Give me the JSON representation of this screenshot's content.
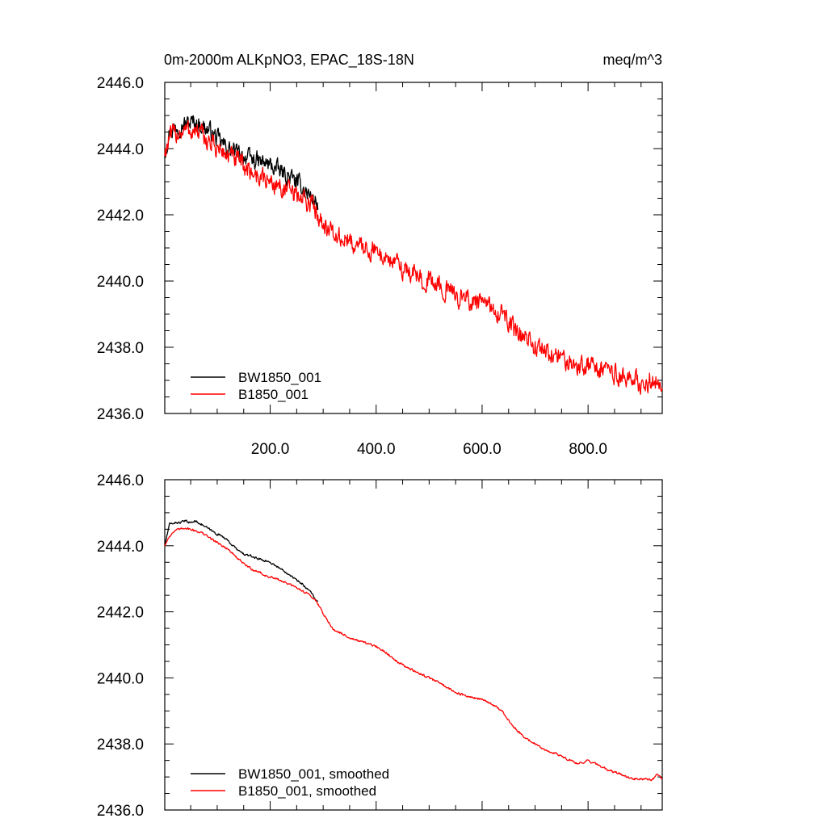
{
  "header": {
    "title": "0m-2000m ALKpNO3, EPAC_18S-18N",
    "units": "meq/m^3"
  },
  "colors": {
    "series_black": "#000000",
    "series_red": "#ff0000"
  },
  "chart_data": [
    {
      "type": "line",
      "title": "0m-2000m ALKpNO3, EPAC_18S-18N",
      "units_label": "meq/m^3",
      "xlabel": "",
      "ylabel": "",
      "xlim": [
        1,
        940
      ],
      "ylim": [
        2436,
        2446
      ],
      "x_ticks": [
        200,
        400,
        600,
        800
      ],
      "x_tick_labels": [
        "200.0",
        "400.0",
        "600.0",
        "800.0"
      ],
      "y_ticks": [
        2436,
        2438,
        2440,
        2442,
        2444,
        2446
      ],
      "y_tick_labels": [
        "2436.0",
        "2438.0",
        "2440.0",
        "2442.0",
        "2444.0",
        "2446.0"
      ],
      "legend_placement": "bottom-left",
      "series": [
        {
          "name": "BW1850_001",
          "color": "#000000",
          "noise": 0.42,
          "x": [
            1,
            10,
            25,
            40,
            55,
            70,
            85,
            100,
            120,
            140,
            160,
            180,
            200,
            220,
            240,
            260,
            280,
            290
          ],
          "y": [
            2443.9,
            2444.5,
            2444.7,
            2444.75,
            2444.8,
            2444.7,
            2444.55,
            2444.3,
            2444.0,
            2443.85,
            2443.7,
            2443.6,
            2443.5,
            2443.3,
            2443.1,
            2442.85,
            2442.5,
            2442.3
          ]
        },
        {
          "name": "B1850_001",
          "color": "#ff0000",
          "noise": 0.48,
          "x": [
            1,
            10,
            25,
            40,
            55,
            70,
            85,
            100,
            120,
            140,
            160,
            180,
            200,
            220,
            240,
            260,
            280,
            290,
            300,
            320,
            340,
            360,
            380,
            400,
            420,
            440,
            460,
            480,
            500,
            520,
            540,
            560,
            580,
            600,
            620,
            640,
            650,
            660,
            680,
            700,
            720,
            740,
            760,
            780,
            800,
            820,
            840,
            860,
            880,
            900,
            920,
            940
          ],
          "y": [
            2443.9,
            2444.3,
            2444.5,
            2444.55,
            2444.55,
            2444.4,
            2444.2,
            2444.0,
            2443.8,
            2443.6,
            2443.35,
            2443.15,
            2443.0,
            2442.85,
            2442.65,
            2442.5,
            2442.3,
            2442.05,
            2441.8,
            2441.35,
            2441.25,
            2441.1,
            2441.0,
            2440.9,
            2440.7,
            2440.5,
            2440.3,
            2440.15,
            2440.0,
            2439.85,
            2439.65,
            2439.5,
            2439.4,
            2439.3,
            2439.15,
            2439.0,
            2438.8,
            2438.5,
            2438.25,
            2438.05,
            2437.85,
            2437.75,
            2437.6,
            2437.45,
            2437.5,
            2437.4,
            2437.25,
            2437.15,
            2437.0,
            2436.95,
            2437.0,
            2436.9
          ]
        }
      ]
    },
    {
      "type": "line",
      "title": "",
      "xlabel": "",
      "ylabel": "",
      "xlim": [
        1,
        940
      ],
      "ylim": [
        2436,
        2446
      ],
      "x_ticks": [
        200,
        400,
        600,
        800
      ],
      "x_tick_labels": [],
      "y_ticks": [
        2436,
        2438,
        2440,
        2442,
        2444,
        2446
      ],
      "y_tick_labels": [
        "2436.0",
        "2438.0",
        "2440.0",
        "2442.0",
        "2444.0",
        "2446.0"
      ],
      "legend_placement": "bottom-left",
      "series": [
        {
          "name": "BW1850_001, smoothed",
          "color": "#000000",
          "noise": 0.05,
          "x": [
            1,
            5,
            10,
            20,
            30,
            40,
            50,
            60,
            70,
            80,
            90,
            100,
            110,
            120,
            130,
            140,
            150,
            160,
            170,
            180,
            190,
            200,
            210,
            220,
            230,
            240,
            250,
            260,
            270,
            280,
            285,
            290
          ],
          "y": [
            2444.0,
            2444.3,
            2444.65,
            2444.7,
            2444.7,
            2444.75,
            2444.7,
            2444.75,
            2444.65,
            2444.55,
            2444.45,
            2444.35,
            2444.3,
            2444.15,
            2444.0,
            2443.85,
            2443.75,
            2443.7,
            2443.65,
            2443.6,
            2443.55,
            2443.5,
            2443.4,
            2443.3,
            2443.2,
            2443.1,
            2442.95,
            2442.85,
            2442.7,
            2442.55,
            2442.35,
            2442.3
          ]
        },
        {
          "name": "B1850_001, smoothed",
          "color": "#ff0000",
          "noise": 0.05,
          "x": [
            1,
            10,
            20,
            30,
            40,
            50,
            60,
            70,
            80,
            90,
            100,
            110,
            120,
            130,
            140,
            150,
            160,
            170,
            180,
            190,
            200,
            210,
            220,
            240,
            260,
            280,
            290,
            300,
            320,
            340,
            360,
            380,
            400,
            420,
            440,
            460,
            480,
            500,
            520,
            540,
            560,
            580,
            600,
            620,
            640,
            650,
            660,
            680,
            700,
            720,
            740,
            760,
            780,
            800,
            820,
            840,
            860,
            880,
            900,
            920,
            930,
            940
          ],
          "y": [
            2444.0,
            2444.3,
            2444.45,
            2444.5,
            2444.55,
            2444.5,
            2444.45,
            2444.4,
            2444.3,
            2444.2,
            2444.1,
            2444.0,
            2443.9,
            2443.75,
            2443.6,
            2443.45,
            2443.35,
            2443.25,
            2443.2,
            2443.1,
            2443.05,
            2443.0,
            2442.95,
            2442.8,
            2442.65,
            2442.45,
            2442.25,
            2441.95,
            2441.45,
            2441.3,
            2441.15,
            2441.05,
            2440.95,
            2440.75,
            2440.5,
            2440.3,
            2440.15,
            2440.0,
            2439.85,
            2439.65,
            2439.5,
            2439.4,
            2439.35,
            2439.2,
            2438.95,
            2438.7,
            2438.5,
            2438.2,
            2438.0,
            2437.8,
            2437.7,
            2437.55,
            2437.4,
            2437.5,
            2437.35,
            2437.2,
            2437.1,
            2436.95,
            2436.95,
            2436.9,
            2437.05,
            2436.95
          ]
        }
      ]
    }
  ]
}
